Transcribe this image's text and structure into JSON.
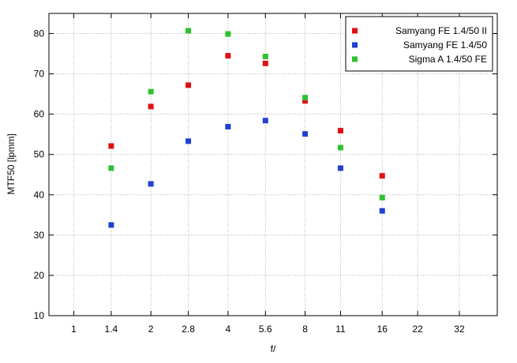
{
  "chart_data": {
    "type": "scatter",
    "title": "",
    "xlabel": "f/",
    "ylabel": "MTF50 [lpmm]",
    "x_scale": "log2",
    "x_ticks": [
      "1",
      "1.4",
      "2",
      "2.8",
      "4",
      "5.6",
      "8",
      "11",
      "16",
      "22",
      "32"
    ],
    "x_tick_values": [
      1,
      1.4,
      2,
      2.8,
      4,
      5.6,
      8,
      11,
      16,
      22,
      32
    ],
    "xlim": [
      0.8,
      45
    ],
    "ylim": [
      10,
      85
    ],
    "y_ticks": [
      10,
      20,
      30,
      40,
      50,
      60,
      70,
      80
    ],
    "grid": true,
    "legend_position": "top-right",
    "series": [
      {
        "name": "Samyang FE 1.4/50 II",
        "color": "#e01010",
        "x": [
          1.4,
          2,
          2.8,
          4,
          5.6,
          8,
          11,
          16
        ],
        "y": [
          52.1,
          61.9,
          67.2,
          74.5,
          72.6,
          63.3,
          55.9,
          44.7
        ]
      },
      {
        "name": "Samyang FE 1.4/50",
        "color": "#2040d0",
        "x": [
          1.4,
          2,
          2.8,
          4,
          5.6,
          8,
          11,
          16
        ],
        "y": [
          32.5,
          42.7,
          53.3,
          56.9,
          58.4,
          55.1,
          46.6,
          36.0
        ]
      },
      {
        "name": "Sigma A 1.4/50 FE",
        "color": "#30c030",
        "x": [
          1.4,
          2,
          2.8,
          4,
          5.6,
          8,
          11,
          16
        ],
        "y": [
          46.6,
          65.6,
          80.7,
          79.9,
          74.3,
          64.1,
          51.7,
          39.3
        ]
      }
    ]
  }
}
